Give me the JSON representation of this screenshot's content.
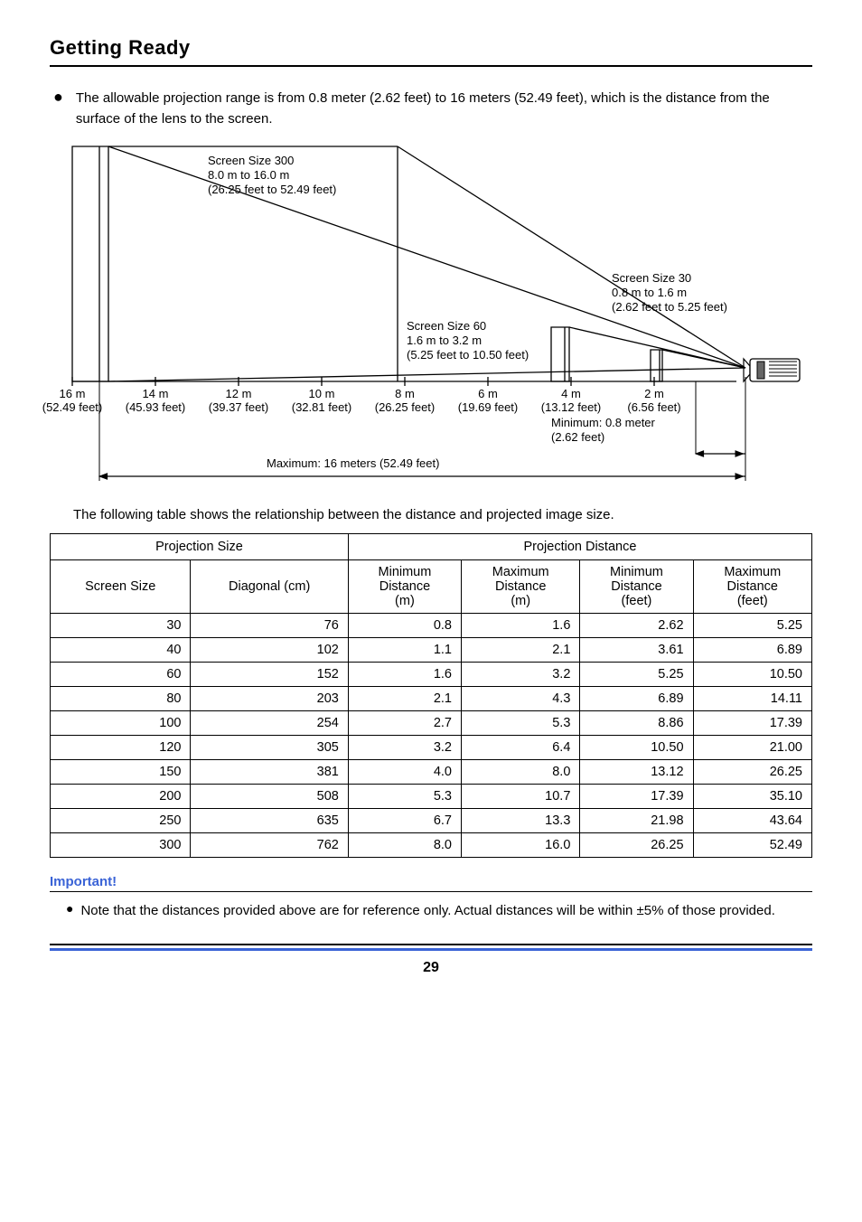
{
  "title": "Getting Ready",
  "intro_bullet": "The allowable projection range is from 0.8 meter (2.62 feet) to 16 meters (52.49 feet), which is the distance from the surface of the lens to the screen.",
  "diagram": {
    "screen300": {
      "l1": "Screen Size 300",
      "l2": "8.0 m to 16.0 m",
      "l3": "(26.25 feet to 52.49 feet)"
    },
    "screen60": {
      "l1": "Screen Size 60",
      "l2": "1.6 m to 3.2 m",
      "l3": "(5.25 feet to 10.50 feet)"
    },
    "screen30": {
      "l1": "Screen Size 30",
      "l2": "0.8 m to 1.6 m",
      "l3": "(2.62 feet to 5.25 feet)"
    },
    "axis": [
      {
        "m": "16 m",
        "ft": "(52.49 feet)"
      },
      {
        "m": "14 m",
        "ft": "(45.93 feet)"
      },
      {
        "m": "12 m",
        "ft": "(39.37 feet)"
      },
      {
        "m": "10 m",
        "ft": "(32.81 feet)"
      },
      {
        "m": "8 m",
        "ft": "(26.25 feet)"
      },
      {
        "m": "6 m",
        "ft": "(19.69 feet)"
      },
      {
        "m": "4 m",
        "ft": "(13.12 feet)"
      },
      {
        "m": "2 m",
        "ft": "(6.56 feet)"
      }
    ],
    "min_label": {
      "l1": "Minimum: 0.8 meter",
      "l2": "(2.62 feet)"
    },
    "max_label": "Maximum: 16 meters (52.49 feet)"
  },
  "table_intro": "The following table shows the relationship between the distance and projected image size.",
  "table": {
    "headers": {
      "proj_size": "Projection Size",
      "proj_dist": "Projection Distance",
      "screen_size": "Screen Size",
      "diagonal": "Diagonal (cm)",
      "min_m": {
        "l1": "Minimum",
        "l2": "Distance",
        "l3": "(m)"
      },
      "max_m": {
        "l1": "Maximum",
        "l2": "Distance",
        "l3": "(m)"
      },
      "min_ft": {
        "l1": "Minimum",
        "l2": "Distance",
        "l3": "(feet)"
      },
      "max_ft": {
        "l1": "Maximum",
        "l2": "Distance",
        "l3": "(feet)"
      }
    },
    "rows": [
      {
        "size": "30",
        "diag": "76",
        "min_m": "0.8",
        "max_m": "1.6",
        "min_ft": "2.62",
        "max_ft": "5.25"
      },
      {
        "size": "40",
        "diag": "102",
        "min_m": "1.1",
        "max_m": "2.1",
        "min_ft": "3.61",
        "max_ft": "6.89"
      },
      {
        "size": "60",
        "diag": "152",
        "min_m": "1.6",
        "max_m": "3.2",
        "min_ft": "5.25",
        "max_ft": "10.50"
      },
      {
        "size": "80",
        "diag": "203",
        "min_m": "2.1",
        "max_m": "4.3",
        "min_ft": "6.89",
        "max_ft": "14.11"
      },
      {
        "size": "100",
        "diag": "254",
        "min_m": "2.7",
        "max_m": "5.3",
        "min_ft": "8.86",
        "max_ft": "17.39"
      },
      {
        "size": "120",
        "diag": "305",
        "min_m": "3.2",
        "max_m": "6.4",
        "min_ft": "10.50",
        "max_ft": "21.00"
      },
      {
        "size": "150",
        "diag": "381",
        "min_m": "4.0",
        "max_m": "8.0",
        "min_ft": "13.12",
        "max_ft": "26.25"
      },
      {
        "size": "200",
        "diag": "508",
        "min_m": "5.3",
        "max_m": "10.7",
        "min_ft": "17.39",
        "max_ft": "35.10"
      },
      {
        "size": "250",
        "diag": "635",
        "min_m": "6.7",
        "max_m": "13.3",
        "min_ft": "21.98",
        "max_ft": "43.64"
      },
      {
        "size": "300",
        "diag": "762",
        "min_m": "8.0",
        "max_m": "16.0",
        "min_ft": "26.25",
        "max_ft": "52.49"
      }
    ]
  },
  "important_label": "Important!",
  "important_note": "Note that the distances provided above are for reference only. Actual distances will be within ±5% of those provided.",
  "page_number": "29"
}
